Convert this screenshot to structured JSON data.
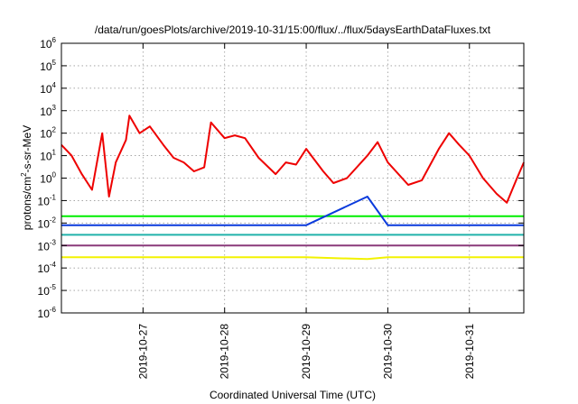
{
  "chart_data": {
    "type": "line",
    "title": "/data/run/goesPlots/archive/2019-10-31/15:00/flux/../flux/5daysEarthDataFluxes.txt",
    "xlabel": "Coordinated Universal Time (UTC)",
    "ylabel_main": "protons/cm",
    "ylabel_sup": "2",
    "ylabel_tail": "-s-sr-MeV",
    "x_scale": "time",
    "xlim": [
      "2019-10-26T00:00",
      "2019-10-31T16:00"
    ],
    "x_ticks": [
      {
        "x": "2019-10-27T00:00",
        "label": "2019-10-27"
      },
      {
        "x": "2019-10-28T00:00",
        "label": "2019-10-28"
      },
      {
        "x": "2019-10-29T00:00",
        "label": "2019-10-29"
      },
      {
        "x": "2019-10-30T00:00",
        "label": "2019-10-30"
      },
      {
        "x": "2019-10-31T00:00",
        "label": "2019-10-31"
      }
    ],
    "y_scale": "log",
    "ylim": [
      1e-06,
      1000000.0
    ],
    "y_ticks": [
      {
        "value": 1e-06,
        "base": "10",
        "exp": "-6"
      },
      {
        "value": 1e-05,
        "base": "10",
        "exp": "-5"
      },
      {
        "value": 0.0001,
        "base": "10",
        "exp": "-4"
      },
      {
        "value": 0.001,
        "base": "10",
        "exp": "-3"
      },
      {
        "value": 0.01,
        "base": "10",
        "exp": "-2"
      },
      {
        "value": 0.1,
        "base": "10",
        "exp": "-1"
      },
      {
        "value": 1,
        "base": "10",
        "exp": "0"
      },
      {
        "value": 10,
        "base": "10",
        "exp": "1"
      },
      {
        "value": 100,
        "base": "10",
        "exp": "2"
      },
      {
        "value": 1000,
        "base": "10",
        "exp": "3"
      },
      {
        "value": 10000,
        "base": "10",
        "exp": "4"
      },
      {
        "value": 100000,
        "base": "10",
        "exp": "5"
      },
      {
        "value": 1000000,
        "base": "10",
        "exp": "6"
      }
    ],
    "grid": true,
    "legend": "none",
    "series": [
      {
        "color": "#f2f200",
        "points": [
          [
            "2019-10-26T00:00",
            0.0003
          ],
          [
            "2019-10-27T00:00",
            0.0003
          ],
          [
            "2019-10-28T00:00",
            0.0003
          ],
          [
            "2019-10-29T00:00",
            0.0003
          ],
          [
            "2019-10-29T18:00",
            0.00025
          ],
          [
            "2019-10-30T00:00",
            0.0003
          ],
          [
            "2019-10-31T00:00",
            0.0003
          ],
          [
            "2019-10-31T16:00",
            0.0003
          ]
        ]
      },
      {
        "color": "#8a3a7a",
        "points": [
          [
            "2019-10-26T00:00",
            0.001
          ],
          [
            "2019-10-27T00:00",
            0.001
          ],
          [
            "2019-10-28T00:00",
            0.001
          ],
          [
            "2019-10-29T00:00",
            0.001
          ],
          [
            "2019-10-30T00:00",
            0.001
          ],
          [
            "2019-10-31T00:00",
            0.001
          ],
          [
            "2019-10-31T16:00",
            0.001
          ]
        ]
      },
      {
        "color": "#20b2aa",
        "points": [
          [
            "2019-10-26T00:00",
            0.003
          ],
          [
            "2019-10-27T00:00",
            0.003
          ],
          [
            "2019-10-28T00:00",
            0.003
          ],
          [
            "2019-10-29T00:00",
            0.003
          ],
          [
            "2019-10-30T00:00",
            0.003
          ],
          [
            "2019-10-31T00:00",
            0.003
          ],
          [
            "2019-10-31T16:00",
            0.003
          ]
        ]
      },
      {
        "color": "#00ee00",
        "points": [
          [
            "2019-10-26T00:00",
            0.02
          ],
          [
            "2019-10-27T00:00",
            0.02
          ],
          [
            "2019-10-28T00:00",
            0.02
          ],
          [
            "2019-10-29T00:00",
            0.02
          ],
          [
            "2019-10-30T00:00",
            0.02
          ],
          [
            "2019-10-31T00:00",
            0.02
          ],
          [
            "2019-10-31T16:00",
            0.02
          ]
        ]
      },
      {
        "color": "#0a3adc",
        "points": [
          [
            "2019-10-26T00:00",
            0.008
          ],
          [
            "2019-10-27T00:00",
            0.008
          ],
          [
            "2019-10-28T00:00",
            0.008
          ],
          [
            "2019-10-29T00:00",
            0.008
          ],
          [
            "2019-10-29T18:00",
            0.15
          ],
          [
            "2019-10-30T00:00",
            0.008
          ],
          [
            "2019-10-31T00:00",
            0.008
          ],
          [
            "2019-10-31T16:00",
            0.008
          ]
        ]
      },
      {
        "color": "#ee0000",
        "points": [
          [
            "2019-10-26T00:00",
            30
          ],
          [
            "2019-10-26T03:00",
            10
          ],
          [
            "2019-10-26T06:00",
            1.5
          ],
          [
            "2019-10-26T09:00",
            0.3
          ],
          [
            "2019-10-26T12:00",
            100
          ],
          [
            "2019-10-26T14:00",
            0.15
          ],
          [
            "2019-10-26T16:00",
            5
          ],
          [
            "2019-10-26T19:00",
            50
          ],
          [
            "2019-10-26T20:00",
            600
          ],
          [
            "2019-10-26T23:00",
            100
          ],
          [
            "2019-10-27T02:00",
            200
          ],
          [
            "2019-10-27T06:00",
            30
          ],
          [
            "2019-10-27T09:00",
            8
          ],
          [
            "2019-10-27T12:00",
            5
          ],
          [
            "2019-10-27T15:00",
            2
          ],
          [
            "2019-10-27T18:00",
            3
          ],
          [
            "2019-10-27T20:00",
            300
          ],
          [
            "2019-10-28T00:00",
            60
          ],
          [
            "2019-10-28T03:00",
            80
          ],
          [
            "2019-10-28T06:00",
            60
          ],
          [
            "2019-10-28T10:00",
            8
          ],
          [
            "2019-10-28T15:00",
            1.5
          ],
          [
            "2019-10-28T18:00",
            5
          ],
          [
            "2019-10-28T21:00",
            4
          ],
          [
            "2019-10-29T00:00",
            20
          ],
          [
            "2019-10-29T05:00",
            2
          ],
          [
            "2019-10-29T08:00",
            0.6
          ],
          [
            "2019-10-29T12:00",
            1
          ],
          [
            "2019-10-29T18:00",
            10
          ],
          [
            "2019-10-29T21:00",
            40
          ],
          [
            "2019-10-30T00:00",
            5
          ],
          [
            "2019-10-30T06:00",
            0.5
          ],
          [
            "2019-10-30T10:00",
            0.8
          ],
          [
            "2019-10-30T15:00",
            20
          ],
          [
            "2019-10-30T18:00",
            100
          ],
          [
            "2019-10-30T21:00",
            30
          ],
          [
            "2019-10-31T00:00",
            10
          ],
          [
            "2019-10-31T04:00",
            1
          ],
          [
            "2019-10-31T08:00",
            0.2
          ],
          [
            "2019-10-31T11:00",
            0.08
          ],
          [
            "2019-10-31T14:00",
            1
          ],
          [
            "2019-10-31T16:00",
            5
          ]
        ]
      }
    ]
  }
}
